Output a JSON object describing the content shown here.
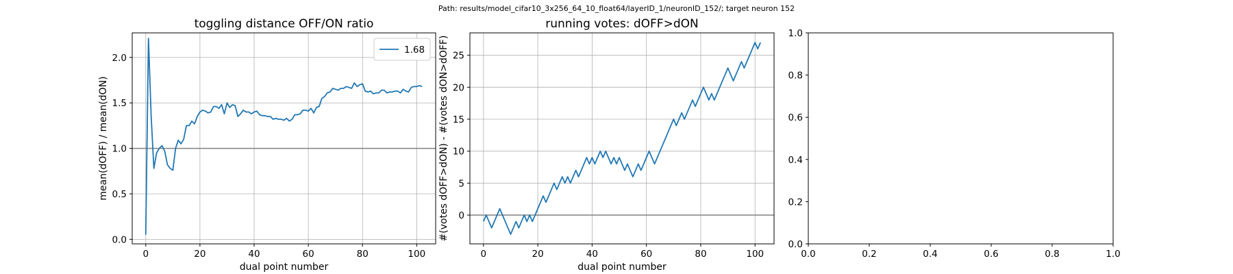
{
  "suptitle": "Path: results/model_cifar10_3x256_64_10_float64/layerID_1/neuronID_152/; target neuron 152",
  "chart_data": [
    {
      "type": "line",
      "title": "toggling distance OFF/ON ratio",
      "xlabel": "dual point number",
      "ylabel": "mean(dOFF) / mean(dON)",
      "xlim": [
        -5,
        107
      ],
      "ylim": [
        -0.05,
        2.27
      ],
      "xticks": [
        0,
        20,
        40,
        60,
        80,
        100
      ],
      "yticks": [
        0.0,
        0.5,
        1.0,
        1.5,
        2.0
      ],
      "xtick_labels": [
        "0",
        "20",
        "40",
        "60",
        "80",
        "100"
      ],
      "ytick_labels": [
        "0.0",
        "0.5",
        "1.0",
        "1.5",
        "2.0"
      ],
      "grid": true,
      "hline": 1.0,
      "legend": {
        "entries": [
          "1.68"
        ],
        "placement": "upper right"
      },
      "series": [
        {
          "name": "1.68",
          "color": "#1f77b4",
          "x": [
            0,
            1,
            2,
            3,
            4,
            5,
            6,
            7,
            8,
            9,
            10,
            11,
            12,
            13,
            14,
            15,
            16,
            17,
            18,
            19,
            20,
            21,
            22,
            23,
            24,
            25,
            26,
            27,
            28,
            29,
            30,
            31,
            32,
            33,
            34,
            35,
            36,
            37,
            38,
            39,
            40,
            41,
            42,
            43,
            44,
            45,
            46,
            47,
            48,
            49,
            50,
            51,
            52,
            53,
            54,
            55,
            56,
            57,
            58,
            59,
            60,
            61,
            62,
            63,
            64,
            65,
            66,
            67,
            68,
            69,
            70,
            71,
            72,
            73,
            74,
            75,
            76,
            77,
            78,
            79,
            80,
            81,
            82,
            83,
            84,
            85,
            86,
            87,
            88,
            89,
            90,
            91,
            92,
            93,
            94,
            95,
            96,
            97,
            98,
            99,
            100,
            101,
            102
          ],
          "y": [
            0.05,
            2.21,
            1.35,
            0.78,
            0.95,
            1.0,
            1.03,
            0.97,
            0.82,
            0.78,
            0.76,
            1.0,
            1.09,
            1.05,
            1.1,
            1.25,
            1.25,
            1.3,
            1.27,
            1.35,
            1.4,
            1.42,
            1.41,
            1.39,
            1.4,
            1.46,
            1.46,
            1.44,
            1.48,
            1.38,
            1.5,
            1.45,
            1.48,
            1.47,
            1.35,
            1.38,
            1.42,
            1.4,
            1.4,
            1.38,
            1.4,
            1.41,
            1.37,
            1.36,
            1.36,
            1.35,
            1.35,
            1.32,
            1.33,
            1.32,
            1.32,
            1.31,
            1.33,
            1.3,
            1.32,
            1.37,
            1.37,
            1.38,
            1.42,
            1.42,
            1.41,
            1.44,
            1.39,
            1.45,
            1.46,
            1.55,
            1.57,
            1.61,
            1.62,
            1.66,
            1.65,
            1.64,
            1.66,
            1.66,
            1.68,
            1.67,
            1.66,
            1.72,
            1.68,
            1.7,
            1.71,
            1.63,
            1.62,
            1.63,
            1.6,
            1.61,
            1.61,
            1.64,
            1.64,
            1.61,
            1.62,
            1.62,
            1.63,
            1.63,
            1.61,
            1.65,
            1.63,
            1.62,
            1.67,
            1.68,
            1.68,
            1.69,
            1.68
          ]
        }
      ]
    },
    {
      "type": "line",
      "title": "running votes: dOFF>dON",
      "xlabel": "dual point number",
      "ylabel": "#(votes dOFF>dON) - #(votes dON>dOFF)",
      "xlim": [
        -5,
        107
      ],
      "ylim": [
        -4.5,
        28.5
      ],
      "xticks": [
        0,
        20,
        40,
        60,
        80,
        100
      ],
      "yticks": [
        0,
        5,
        10,
        15,
        20,
        25
      ],
      "xtick_labels": [
        "0",
        "20",
        "40",
        "60",
        "80",
        "100"
      ],
      "ytick_labels": [
        "0",
        "5",
        "10",
        "15",
        "20",
        "25"
      ],
      "grid": true,
      "hline": 0,
      "series": [
        {
          "color": "#1f77b4",
          "x": [
            0,
            1,
            2,
            3,
            4,
            5,
            6,
            7,
            8,
            9,
            10,
            11,
            12,
            13,
            14,
            15,
            16,
            17,
            18,
            19,
            20,
            21,
            22,
            23,
            24,
            25,
            26,
            27,
            28,
            29,
            30,
            31,
            32,
            33,
            34,
            35,
            36,
            37,
            38,
            39,
            40,
            41,
            42,
            43,
            44,
            45,
            46,
            47,
            48,
            49,
            50,
            51,
            52,
            53,
            54,
            55,
            56,
            57,
            58,
            59,
            60,
            61,
            62,
            63,
            64,
            65,
            66,
            67,
            68,
            69,
            70,
            71,
            72,
            73,
            74,
            75,
            76,
            77,
            78,
            79,
            80,
            81,
            82,
            83,
            84,
            85,
            86,
            87,
            88,
            89,
            90,
            91,
            92,
            93,
            94,
            95,
            96,
            97,
            98,
            99,
            100,
            101,
            102
          ],
          "y": [
            -1,
            0,
            -1,
            -2,
            -1,
            0,
            1,
            0,
            -1,
            -2,
            -3,
            -2,
            -1,
            -2,
            -1,
            0,
            -1,
            0,
            -1,
            0,
            1,
            2,
            3,
            2,
            3,
            4,
            5,
            4,
            5,
            6,
            5,
            6,
            5,
            6,
            7,
            6,
            7,
            8,
            9,
            8,
            9,
            8,
            9,
            10,
            9,
            10,
            9,
            8,
            9,
            8,
            9,
            8,
            7,
            8,
            7,
            6,
            7,
            8,
            7,
            8,
            9,
            10,
            9,
            8,
            9,
            10,
            11,
            12,
            13,
            14,
            15,
            14,
            15,
            16,
            15,
            16,
            17,
            18,
            17,
            18,
            19,
            20,
            19,
            18,
            19,
            18,
            19,
            20,
            21,
            22,
            23,
            22,
            21,
            22,
            23,
            24,
            23,
            24,
            25,
            26,
            27,
            26,
            27
          ]
        }
      ]
    },
    {
      "type": "line",
      "title": "",
      "xlim": [
        0,
        1
      ],
      "ylim": [
        0,
        1
      ],
      "xticks": [
        0.0,
        0.2,
        0.4,
        0.6,
        0.8,
        1.0
      ],
      "yticks": [
        0.0,
        0.2,
        0.4,
        0.6,
        0.8,
        1.0
      ],
      "xtick_labels": [
        "0.0",
        "0.2",
        "0.4",
        "0.6",
        "0.8",
        "1.0"
      ],
      "ytick_labels": [
        "0.0",
        "0.2",
        "0.4",
        "0.6",
        "0.8",
        "1.0"
      ],
      "grid": false,
      "series": []
    }
  ]
}
